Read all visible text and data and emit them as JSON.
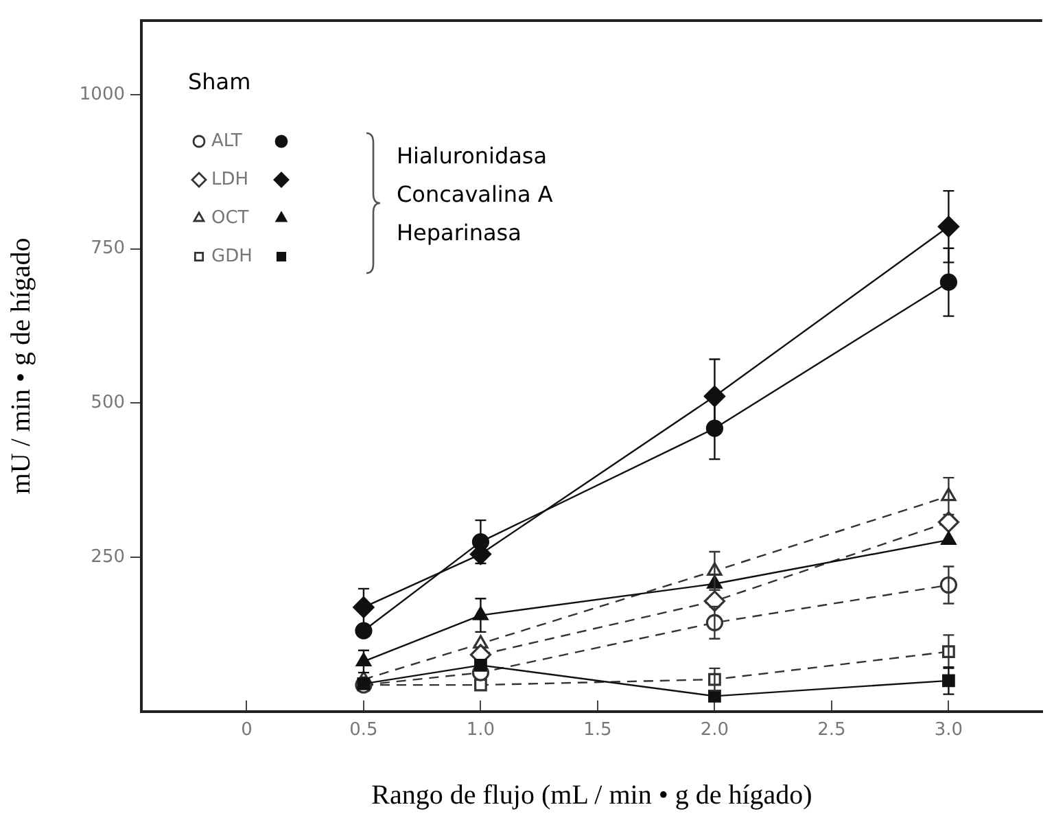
{
  "chart_data": {
    "type": "line",
    "xlabel": "Rango de flujo (mL / min • g de hígado)",
    "ylabel": "mU / min • g de hígado",
    "x": [
      0.5,
      1.0,
      2.0,
      3.0
    ],
    "xlim": [
      -0.45,
      3.4
    ],
    "xticks": [
      0,
      0.5,
      {
        "value": 1,
        "label": "1.0"
      },
      1.5,
      {
        "value": 2,
        "label": "2.0"
      },
      2.5,
      {
        "value": 3,
        "label": "3.0"
      }
    ],
    "ylim": [
      0,
      1120
    ],
    "yticks": [
      250,
      500,
      750,
      1000
    ],
    "grid": false,
    "legend": "top left",
    "annotations": [
      "Sham",
      "Hialuronidasa",
      "Concavalina A",
      "Heparinasa"
    ],
    "series": [
      {
        "name": "ALT",
        "color": "#333333",
        "marker": "circle",
        "line_style": "dashed",
        "values": [
          43,
          63,
          144,
          205
        ],
        "errors": [
          null,
          null,
          26,
          30
        ]
      },
      {
        "name": "LDH",
        "color": "#333333",
        "marker": "diamond",
        "line_style": "dashed",
        "values": [
          null,
          92,
          179,
          307
        ],
        "errors": [
          null,
          null,
          null,
          null
        ]
      },
      {
        "name": "OCT",
        "color": "#333333",
        "marker": "triangle",
        "line_style": "dashed",
        "values": [
          52,
          110,
          228,
          349
        ],
        "errors": [
          null,
          null,
          31,
          30
        ]
      },
      {
        "name": "GDH",
        "color": "#333333",
        "marker": "square",
        "line_style": "dashed",
        "values": [
          43,
          43,
          52,
          97
        ],
        "errors": [
          null,
          null,
          18,
          27
        ]
      },
      {
        "color": "#111111",
        "marker": "circle",
        "line_style": "solid",
        "values": [
          131,
          275,
          459,
          696
        ],
        "errors": [
          null,
          35,
          50,
          55
        ]
      },
      {
        "color": "#111111",
        "marker": "diamond",
        "line_style": "solid",
        "values": [
          169,
          255,
          511,
          786
        ],
        "errors": [
          30,
          null,
          60,
          58
        ]
      },
      {
        "color": "#111111",
        "marker": "triangle",
        "line_style": "solid",
        "values": [
          81,
          156,
          207,
          278
        ],
        "errors": [
          18,
          27,
          null,
          null
        ]
      },
      {
        "color": "#111111",
        "marker": "square",
        "line_style": "solid",
        "values": [
          45,
          75,
          25,
          50
        ],
        "errors": [
          null,
          null,
          null,
          22
        ]
      }
    ]
  }
}
